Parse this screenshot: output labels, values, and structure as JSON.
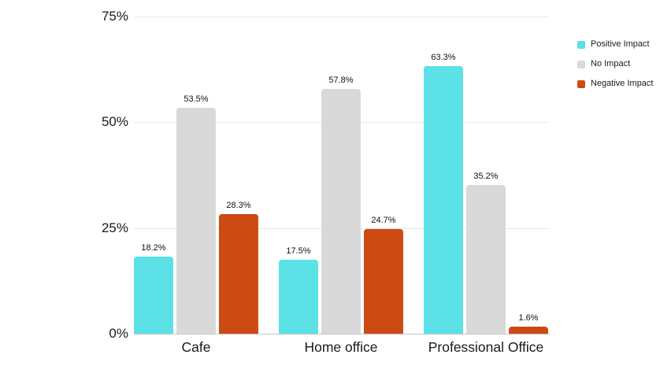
{
  "chart_data": {
    "type": "bar",
    "title": "",
    "xlabel": "",
    "ylabel": "",
    "categories": [
      "Cafe",
      "Home office",
      "Professional Office"
    ],
    "series": [
      {
        "name": "Positive Impact",
        "color": "#5CE1E6",
        "values": [
          18.2,
          17.5,
          63.3
        ],
        "labels": [
          "18.2%",
          "17.5%",
          "63.3%"
        ]
      },
      {
        "name": "No Impact",
        "color": "#D9D9D9",
        "values": [
          53.5,
          57.8,
          35.2
        ],
        "labels": [
          "53.5%",
          "57.8%",
          "35.2%"
        ]
      },
      {
        "name": "Negative Impact",
        "color": "#CC4B14",
        "values": [
          28.3,
          24.7,
          1.6
        ],
        "labels": [
          "28.3%",
          "24.7%",
          "1.6%"
        ]
      }
    ],
    "yticks": [
      {
        "value": 0,
        "label": "0%"
      },
      {
        "value": 25,
        "label": "25%"
      },
      {
        "value": 50,
        "label": "50%"
      },
      {
        "value": 75,
        "label": "75%"
      }
    ],
    "ylim": [
      0,
      75
    ],
    "grid": true,
    "legend_position": "top-right"
  },
  "colors": {
    "background": "#FFFFFF",
    "gridline": "#E9E9E9",
    "baseline": "#C6C6C6",
    "text": "#1A1A1A"
  }
}
